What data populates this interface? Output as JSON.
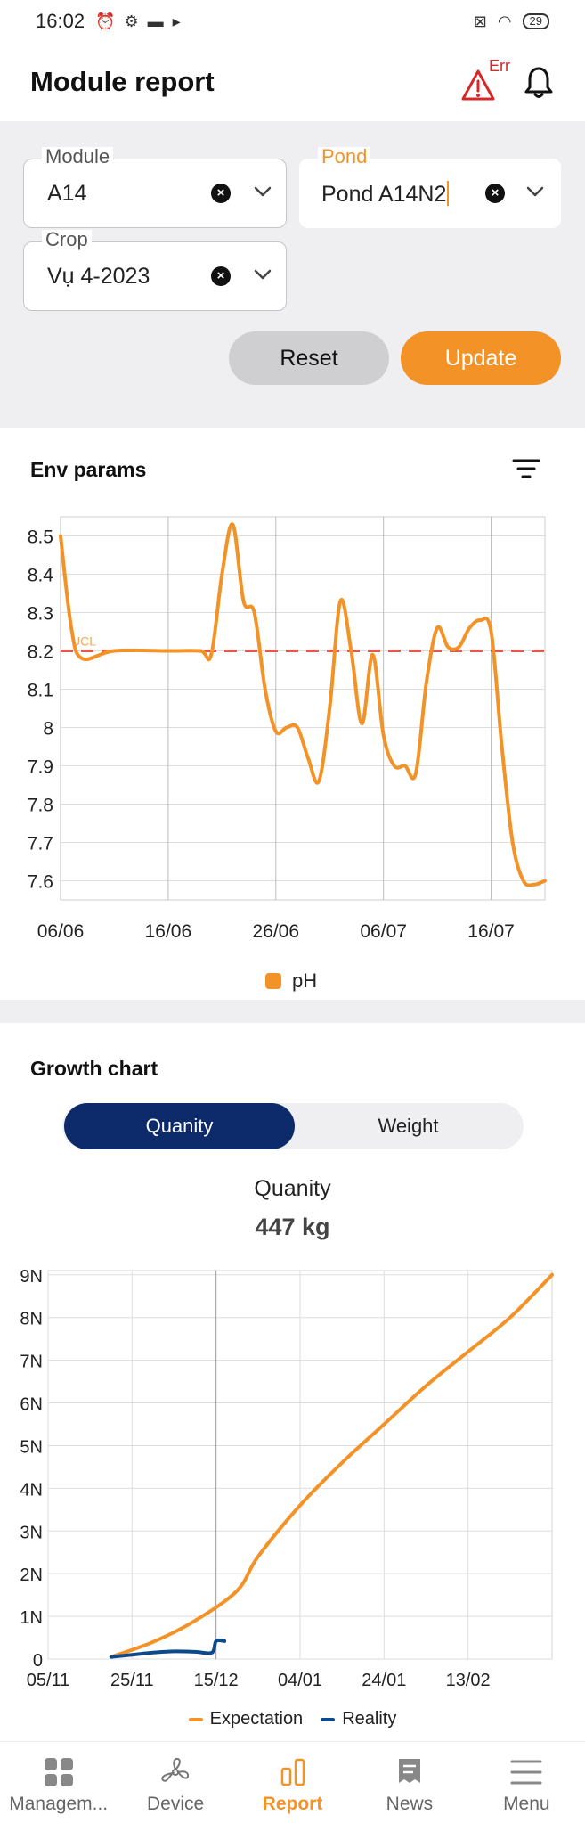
{
  "status_bar": {
    "time": "16:02",
    "battery": "29",
    "icons": [
      "alarm-icon",
      "settings-icon",
      "video-icon",
      "play-icon",
      "sim-icon",
      "wifi-icon",
      "battery-icon"
    ]
  },
  "header": {
    "title": "Module report",
    "err_badge": "Err"
  },
  "filters": {
    "module": {
      "label": "Module",
      "value": "A14"
    },
    "pond": {
      "label": "Pond",
      "value": "Pond A14N2"
    },
    "crop": {
      "label": "Crop",
      "value": "Vụ 4-2023"
    },
    "reset_label": "Reset",
    "update_label": "Update"
  },
  "env_params": {
    "title": "Env params",
    "ucl_label": "UCL",
    "legend_label": "pH"
  },
  "growth": {
    "title": "Growth chart",
    "tab_quantity": "Quanity",
    "tab_weight": "Weight",
    "metric_title": "Quanity",
    "metric_value": "447 kg",
    "legend_expectation": "Expectation",
    "legend_reality": "Reality"
  },
  "nav": {
    "items": [
      {
        "label": "Managem...",
        "icon": "grid-icon"
      },
      {
        "label": "Device",
        "icon": "fan-icon"
      },
      {
        "label": "Report",
        "icon": "bar-chart-icon"
      },
      {
        "label": "News",
        "icon": "news-icon"
      },
      {
        "label": "Menu",
        "icon": "menu-icon"
      }
    ],
    "active": "Report"
  },
  "colors": {
    "accent": "#f39327",
    "navy": "#0d2a6b",
    "ucl_line": "#e05a4f",
    "error": "#d62828"
  },
  "chart_data": [
    {
      "type": "line",
      "title": "Env params",
      "x_ticks": [
        "06/06",
        "16/06",
        "26/06",
        "06/07",
        "16/07"
      ],
      "y_ticks": [
        "8.5",
        "8.4",
        "8.3",
        "8.2",
        "8.1",
        "8",
        "7.9",
        "7.8",
        "7.7",
        "7.6"
      ],
      "ylim": [
        7.55,
        8.55
      ],
      "x_start": "06/06",
      "x_end": "21/07",
      "ucl": 8.2,
      "series": [
        {
          "name": "pH",
          "x": [
            0,
            1,
            2,
            5,
            10,
            13,
            14,
            15,
            16,
            17,
            18,
            19,
            20,
            21,
            22,
            23,
            24,
            25,
            26,
            27,
            28,
            29,
            30,
            31,
            32,
            33,
            34,
            35,
            36,
            37,
            38,
            39,
            40,
            41,
            42,
            43,
            44,
            45
          ],
          "y": [
            8.5,
            8.26,
            8.18,
            8.2,
            8.2,
            8.2,
            8.19,
            8.4,
            8.53,
            8.33,
            8.3,
            8.1,
            7.99,
            8.0,
            8.0,
            7.92,
            7.86,
            8.05,
            8.33,
            8.2,
            8.01,
            8.19,
            7.98,
            7.9,
            7.9,
            7.88,
            8.12,
            8.26,
            8.21,
            8.21,
            8.26,
            8.28,
            8.25,
            7.95,
            7.7,
            7.6,
            7.59,
            7.6
          ]
        }
      ],
      "legend": "bottom",
      "grid": true
    },
    {
      "type": "line",
      "title": "",
      "x_ticks": [
        "05/11",
        "25/11",
        "15/12",
        "04/01",
        "24/01",
        "13/02"
      ],
      "y_ticks": [
        "0",
        "1N",
        "2N",
        "3N",
        "4N",
        "5N",
        "6N",
        "7N",
        "8N",
        "9N"
      ],
      "ylim": [
        0,
        9.1
      ],
      "x_start": "05/11",
      "x_end": "05/03",
      "series": [
        {
          "name": "Expectation",
          "x": [
            "20/11",
            "30/11",
            "10/12",
            "20/12",
            "25/12",
            "04/01",
            "14/01",
            "24/01",
            "03/02",
            "13/02",
            "23/02",
            "05/03"
          ],
          "y": [
            0.05,
            0.4,
            0.9,
            1.6,
            2.4,
            3.6,
            4.6,
            5.5,
            6.4,
            7.2,
            8.0,
            9.0
          ]
        },
        {
          "name": "Reality",
          "x": [
            "20/11",
            "25/11",
            "30/11",
            "05/12",
            "10/12",
            "14/12",
            "15/12",
            "17/12"
          ],
          "y": [
            0.05,
            0.1,
            0.15,
            0.18,
            0.17,
            0.15,
            0.42,
            0.42
          ]
        }
      ],
      "legend": "bottom",
      "grid": true
    }
  ]
}
